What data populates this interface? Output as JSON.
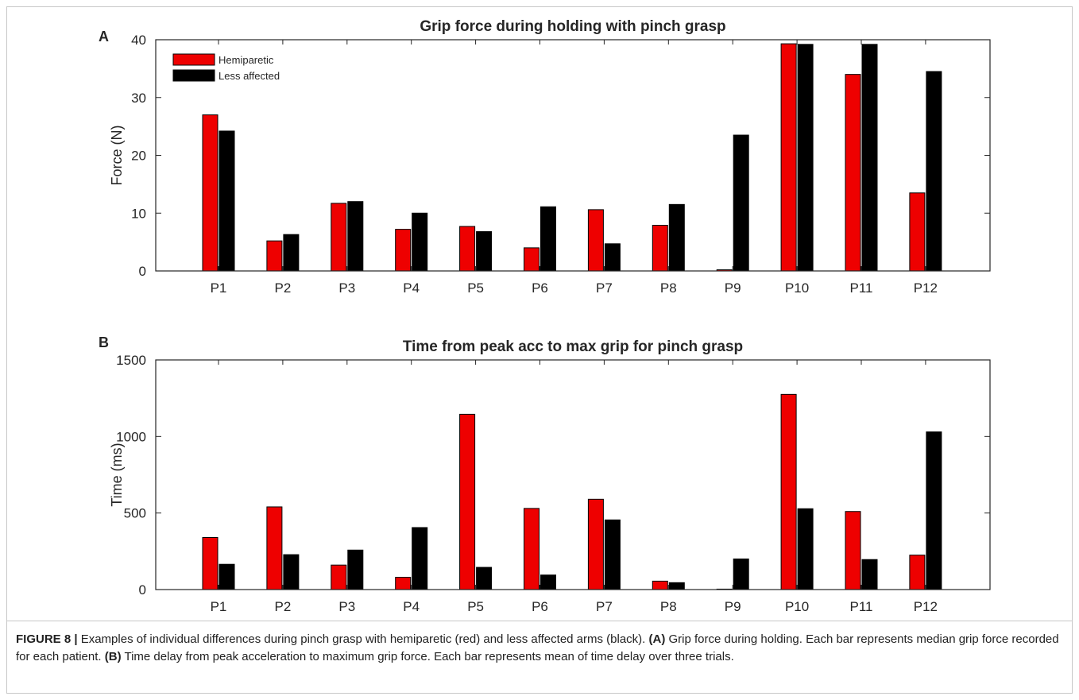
{
  "colors": {
    "hemiparetic": "#ee0000",
    "less_affected": "#000000",
    "axis": "#262626"
  },
  "chart_data": [
    {
      "panel": "A",
      "type": "bar",
      "title": "Grip force during holding with pinch grasp",
      "xlabel": "",
      "ylabel": "Force (N)",
      "ylim": [
        0,
        40
      ],
      "yticks": [
        0,
        10,
        20,
        30,
        40
      ],
      "grid": false,
      "legend_position": "top-left",
      "categories": [
        "P1",
        "P2",
        "P3",
        "P4",
        "P5",
        "P6",
        "P7",
        "P8",
        "P9",
        "P10",
        "P11",
        "P12"
      ],
      "series": [
        {
          "name": "Hemiparetic",
          "color": "#ee0000",
          "values": [
            27.0,
            5.2,
            11.7,
            7.2,
            7.7,
            4.0,
            10.6,
            7.9,
            0.2,
            39.3,
            34.0,
            13.5
          ]
        },
        {
          "name": "Less affected",
          "color": "#000000",
          "values": [
            24.2,
            6.3,
            12.0,
            10.0,
            6.8,
            11.1,
            4.7,
            11.5,
            23.5,
            39.2,
            39.2,
            34.5
          ]
        }
      ]
    },
    {
      "panel": "B",
      "type": "bar",
      "title": "Time from peak acc to max grip for pinch grasp",
      "xlabel": "",
      "ylabel": "Time (ms)",
      "ylim": [
        0,
        1500
      ],
      "yticks": [
        0,
        500,
        1000,
        1500
      ],
      "grid": false,
      "categories": [
        "P1",
        "P2",
        "P3",
        "P4",
        "P5",
        "P6",
        "P7",
        "P8",
        "P9",
        "P10",
        "P11",
        "P12"
      ],
      "series": [
        {
          "color": "#ee0000",
          "values": [
            340,
            540,
            160,
            80,
            1145,
            530,
            590,
            55,
            3,
            1275,
            510,
            225
          ]
        },
        {
          "color": "#000000",
          "values": [
            165,
            228,
            258,
            405,
            145,
            95,
            455,
            45,
            200,
            528,
            196,
            1030
          ]
        }
      ]
    }
  ],
  "caption": {
    "label": "FIGURE 8 |",
    "part1": " Examples of individual differences during pinch grasp with hemiparetic (red) and less affected arms (black). ",
    "a_label": "(A)",
    "part2": " Grip force during holding. Each bar represents median grip force recorded for each patient. ",
    "b_label": "(B)",
    "part3": " Time delay from peak acceleration to maximum grip force. Each bar represents mean of time delay over three trials."
  }
}
